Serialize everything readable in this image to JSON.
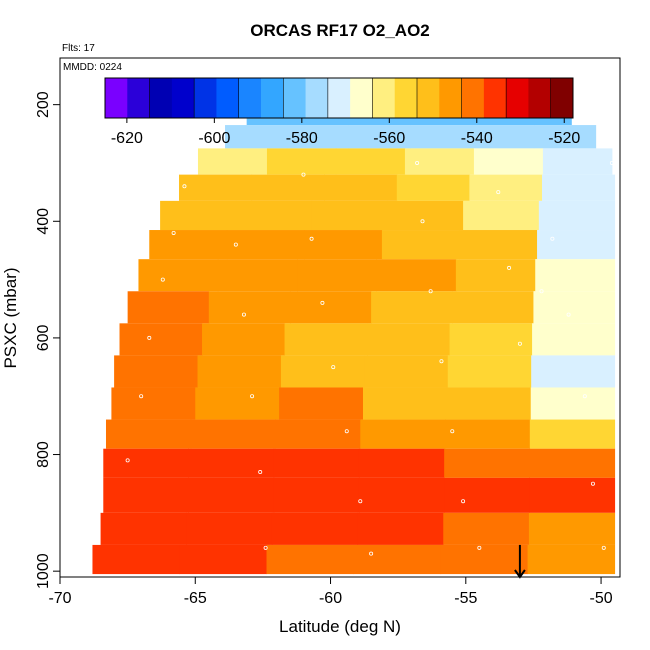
{
  "chart_data": {
    "type": "heatmap",
    "title": "ORCAS RF17 O2_AO2",
    "flights_label": "Flts: 17",
    "date_label": "MMDD: 0224",
    "xlabel": "Latitude (deg N)",
    "ylabel": "PSXC (mbar)",
    "xlim": [
      -70,
      -49.3
    ],
    "ylim": [
      1010,
      120
    ],
    "y_reversed": true,
    "x_ticks": [
      -70,
      -65,
      -60,
      -55,
      -50
    ],
    "y_ticks": [
      200,
      400,
      600,
      800,
      1000
    ],
    "colorbar": {
      "min": -625,
      "max": -518,
      "ticks": [
        -620,
        -600,
        -580,
        -560,
        -540,
        -520
      ],
      "colors": [
        "#7a00ff",
        "#2b00d9",
        "#0000b3",
        "#0000cc",
        "#0033e6",
        "#005cff",
        "#1a85ff",
        "#33a6ff",
        "#66c2ff",
        "#a6dcff",
        "#d9f0ff",
        "#ffffcc",
        "#ffef80",
        "#ffd633",
        "#ffbf1a",
        "#ff9900",
        "#ff7300",
        "#ff3300",
        "#e60000",
        "#b30000",
        "#800000"
      ]
    },
    "layers": [
      {
        "p_top": 175,
        "p_bot": 200,
        "lat_start": -62.5,
        "lat_end": -51.6,
        "values": [
          -588,
          -587,
          -587,
          -587,
          -588,
          -588
        ]
      },
      {
        "p_top": 200,
        "p_bot": 235,
        "lat_start": -63.1,
        "lat_end": -51.1,
        "values": [
          -584,
          -584,
          -583,
          -583,
          -584,
          -583
        ]
      },
      {
        "p_top": 235,
        "p_bot": 275,
        "lat_start": -63.9,
        "lat_end": -50.2,
        "values": [
          -576,
          -575,
          -575,
          -575,
          -576,
          -576
        ]
      },
      {
        "p_top": 275,
        "p_bot": 320,
        "lat_start": -64.9,
        "lat_end": -49.6,
        "values": [
          -560,
          -558,
          -557,
          -562,
          -566,
          -570
        ]
      },
      {
        "p_top": 320,
        "p_bot": 365,
        "lat_start": -65.6,
        "lat_end": -49.5,
        "values": [
          -553,
          -552,
          -553,
          -556,
          -562,
          -570
        ]
      },
      {
        "p_top": 365,
        "p_bot": 415,
        "lat_start": -66.3,
        "lat_end": -49.5,
        "values": [
          -551,
          -550,
          -551,
          -553,
          -559,
          -572
        ]
      },
      {
        "p_top": 415,
        "p_bot": 465,
        "lat_start": -66.7,
        "lat_end": -49.5,
        "values": [
          -548,
          -547,
          -545,
          -549,
          -553,
          -570
        ]
      },
      {
        "p_top": 465,
        "p_bot": 520,
        "lat_start": -67.1,
        "lat_end": -49.5,
        "values": [
          -546,
          -546,
          -547,
          -548,
          -551,
          -567
        ]
      },
      {
        "p_top": 520,
        "p_bot": 575,
        "lat_start": -67.5,
        "lat_end": -49.5,
        "values": [
          -540,
          -546,
          -548,
          -549,
          -551,
          -567
        ]
      },
      {
        "p_top": 575,
        "p_bot": 630,
        "lat_start": -67.8,
        "lat_end": -49.5,
        "values": [
          -542,
          -547,
          -549,
          -551,
          -554,
          -568
        ]
      },
      {
        "p_top": 630,
        "p_bot": 685,
        "lat_start": -68.0,
        "lat_end": -49.5,
        "values": [
          -542,
          -545,
          -550,
          -552,
          -555,
          -570
        ]
      },
      {
        "p_top": 685,
        "p_bot": 740,
        "lat_start": -68.1,
        "lat_end": -49.5,
        "values": [
          -541,
          -544,
          -540,
          -549,
          -553,
          -566
        ]
      },
      {
        "p_top": 740,
        "p_bot": 790,
        "lat_start": -68.3,
        "lat_end": -49.5,
        "values": [
          -540,
          -542,
          -543,
          -545,
          -547,
          -556
        ]
      },
      {
        "p_top": 790,
        "p_bot": 840,
        "lat_start": -68.4,
        "lat_end": -49.5,
        "values": [
          -536,
          -537,
          -538,
          -538,
          -539,
          -540
        ]
      },
      {
        "p_top": 840,
        "p_bot": 900,
        "lat_start": -68.4,
        "lat_end": -49.5,
        "values": [
          -535,
          -536,
          -536,
          -537,
          -537,
          -538
        ]
      },
      {
        "p_top": 900,
        "p_bot": 955,
        "lat_start": -68.5,
        "lat_end": -49.5,
        "values": [
          -535,
          -536,
          -537,
          -538,
          -540,
          -546
        ]
      },
      {
        "p_top": 955,
        "p_bot": 1005,
        "lat_start": -68.8,
        "lat_end": -49.5,
        "values": [
          -537,
          -538,
          -539,
          -540,
          -541,
          -544
        ]
      }
    ],
    "flight_track": [
      [
        -62.4,
        190
      ],
      [
        -61.0,
        185
      ],
      [
        -59.5,
        185
      ],
      [
        -58.0,
        185
      ],
      [
        -56.5,
        185
      ],
      [
        -55.0,
        185
      ],
      [
        -54.5,
        190
      ],
      [
        -51.5,
        190
      ],
      [
        -67.5,
        810
      ],
      [
        -67.0,
        700
      ],
      [
        -66.7,
        600
      ],
      [
        -66.2,
        500
      ],
      [
        -65.8,
        420
      ],
      [
        -65.4,
        340
      ],
      [
        -65.0,
        300
      ],
      [
        -63.5,
        440
      ],
      [
        -63.2,
        560
      ],
      [
        -62.9,
        700
      ],
      [
        -62.6,
        830
      ],
      [
        -62.4,
        960
      ],
      [
        -61.0,
        320
      ],
      [
        -60.7,
        430
      ],
      [
        -60.3,
        540
      ],
      [
        -59.9,
        650
      ],
      [
        -59.4,
        760
      ],
      [
        -58.9,
        880
      ],
      [
        -58.5,
        970
      ],
      [
        -56.8,
        300
      ],
      [
        -56.6,
        400
      ],
      [
        -56.3,
        520
      ],
      [
        -55.9,
        640
      ],
      [
        -55.5,
        760
      ],
      [
        -55.1,
        880
      ],
      [
        -54.5,
        960
      ],
      [
        -53.8,
        350
      ],
      [
        -53.4,
        480
      ],
      [
        -53.0,
        610
      ],
      [
        -52.2,
        520
      ],
      [
        -51.8,
        430
      ],
      [
        -51.2,
        560
      ],
      [
        -50.6,
        700
      ],
      [
        -50.3,
        850
      ],
      [
        -49.9,
        960
      ],
      [
        -49.6,
        300
      ]
    ],
    "arrow_marker": {
      "lat": -53.0,
      "p_from": 955,
      "p_to": 1010
    }
  }
}
